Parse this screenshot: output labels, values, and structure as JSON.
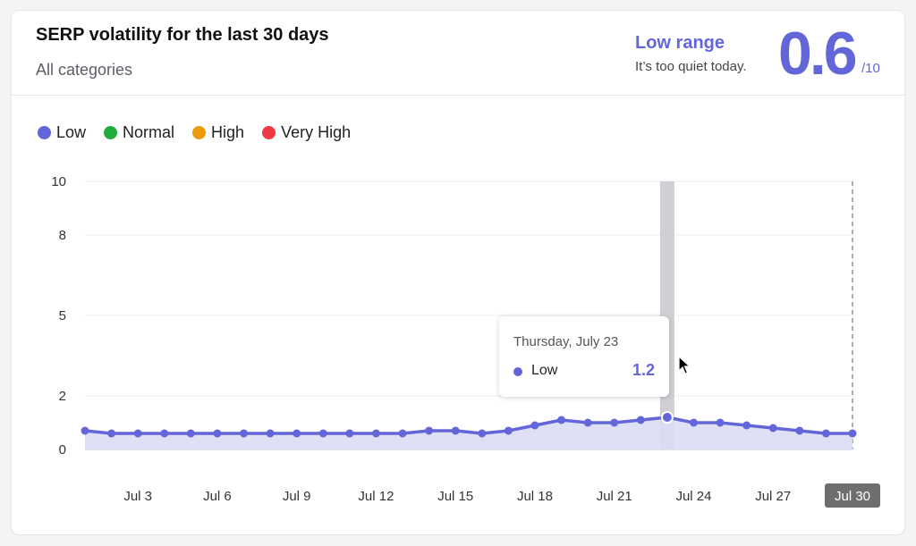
{
  "header": {
    "title": "SERP volatility for the last 30 days",
    "subtitle": "All categories",
    "range_title": "Low range",
    "range_desc": "It’s too quiet today.",
    "score": "0.6",
    "score_max": "/10"
  },
  "legend": [
    {
      "label": "Low",
      "color": "#6366d8"
    },
    {
      "label": "Normal",
      "color": "#1fae3a"
    },
    {
      "label": "High",
      "color": "#ee9a0e"
    },
    {
      "label": "Very High",
      "color": "#ee3844"
    }
  ],
  "tooltip": {
    "date": "Thursday, July 23",
    "label": "Low",
    "value": "1.2"
  },
  "chart_data": {
    "type": "area",
    "x": [
      1,
      2,
      3,
      4,
      5,
      6,
      7,
      8,
      9,
      10,
      11,
      12,
      13,
      14,
      15,
      16,
      17,
      18,
      19,
      20,
      21,
      22,
      23,
      24,
      25,
      26,
      27,
      28,
      29,
      30
    ],
    "series": [
      {
        "name": "Low",
        "values": [
          0.7,
          0.6,
          0.6,
          0.6,
          0.6,
          0.6,
          0.6,
          0.6,
          0.6,
          0.6,
          0.6,
          0.6,
          0.6,
          0.7,
          0.7,
          0.6,
          0.7,
          0.9,
          1.1,
          1.0,
          1.0,
          1.1,
          1.2,
          1.0,
          1.0,
          0.9,
          0.8,
          0.7,
          0.6,
          0.6
        ]
      }
    ],
    "x_tick_labels": [
      "Jul 3",
      "Jul 6",
      "Jul 9",
      "Jul 12",
      "Jul 15",
      "Jul 18",
      "Jul 21",
      "Jul 24",
      "Jul 27",
      "Jul 30"
    ],
    "x_tick_days": [
      3,
      6,
      9,
      12,
      15,
      18,
      21,
      24,
      27,
      30
    ],
    "y_ticks": [
      0,
      2,
      5,
      8,
      10
    ],
    "ylim": [
      0,
      10
    ],
    "highlight_day": 23,
    "grid": true,
    "legend_position": "top-left",
    "colors": {
      "line": "#6366d8",
      "fill": "#dcdcf5",
      "highlight": "#c8c8cc"
    }
  }
}
